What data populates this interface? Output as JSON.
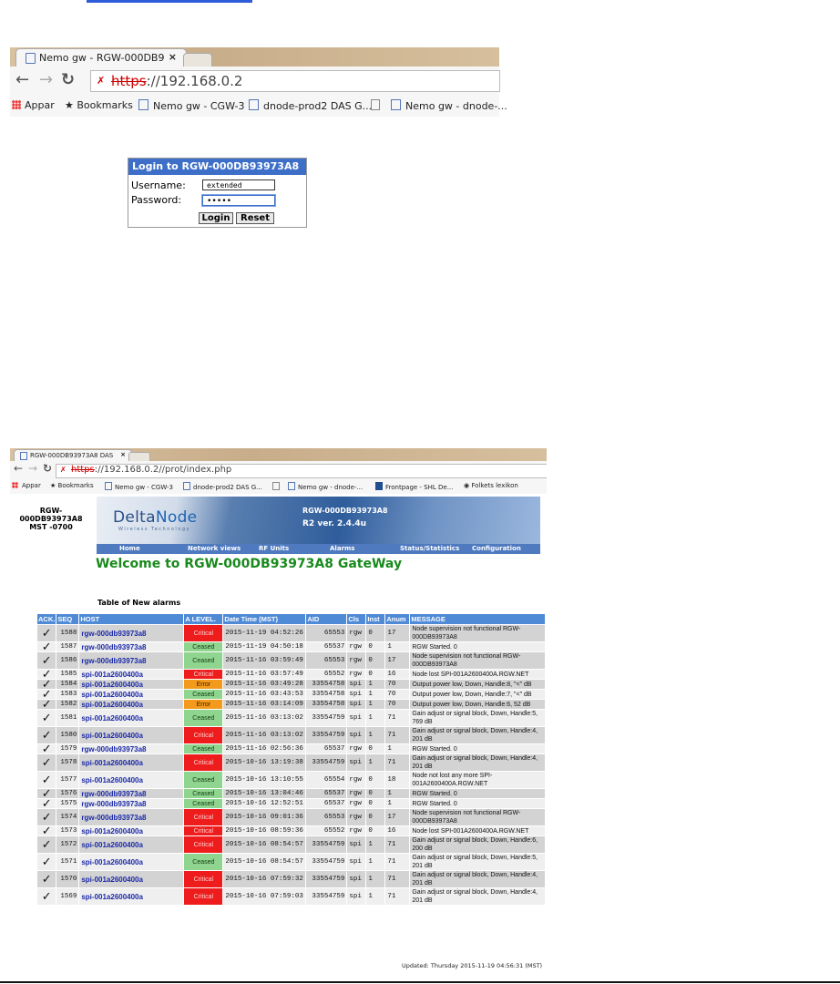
{
  "top_browser": {
    "tab_title": "Nemo gw - RGW-000DB9",
    "tab_close": "×",
    "url_scheme": "https",
    "url_rest": "://192.168.0.2",
    "bookmarks": [
      "Appar",
      "Bookmarks",
      "Nemo gw - CGW-3",
      "dnode-prod2 DAS G...",
      "",
      "Nemo gw - dnode-..."
    ]
  },
  "login": {
    "title": "Login to RGW-000DB93973A8",
    "username_label": "Username:",
    "username_value": "extended",
    "password_label": "Password:",
    "password_value": "•••••",
    "login_button": "Login",
    "reset_button": "Reset"
  },
  "bottom_browser": {
    "tab_title": "RGW-000DB93973A8 DAS",
    "tab_close": "×",
    "url_scheme": "https",
    "url_rest": "://192.168.0.2//prot/index.php",
    "bookmarks": [
      "Appar",
      "Bookmarks",
      "Nemo gw - CGW-3",
      "dnode-prod2 DAS G...",
      "",
      "Nemo gw - dnode-...",
      "Frontpage - SHL De...",
      "Folkets lexikon"
    ]
  },
  "page": {
    "side_title": "RGW-000DB93973A8",
    "side_tz": "MST -0700",
    "logo_delta": "Delta",
    "logo_node": "Node",
    "logo_tagline": "Wireless Technology",
    "banner_line1": "RGW-000DB93973A8",
    "banner_line2": "R2 ver. 2.4.4u",
    "menu": [
      "Home",
      "Network views",
      "RF Units",
      "Alarms",
      "Status/Statistics",
      "Configuration"
    ],
    "welcome": "Welcome to RGW-000DB93973A8 GateWay",
    "table_caption": "Table of New alarms",
    "columns": [
      "ACK.",
      "SEQ",
      "HOST",
      "A LEVEL.",
      "Date Time (MST)",
      "AID",
      "Cls",
      "Inst",
      "Anum",
      "MESSAGE"
    ],
    "updated": "Updated: Thursday 2015-11-19 04:56:31 (MST)"
  },
  "alarms": [
    {
      "seq": "1588",
      "host": "rgw-000db93973a8",
      "level": "Critical",
      "dt": "2015-11-19 04:52:26",
      "aid": "65553",
      "cls": "rgw",
      "inst": "0",
      "anum": "17",
      "msg": "Node supervision not functional RGW-000DB93973A8"
    },
    {
      "seq": "1587",
      "host": "rgw-000db93973a8",
      "level": "Ceased",
      "dt": "2015-11-19 04:50:18",
      "aid": "65537",
      "cls": "rgw",
      "inst": "0",
      "anum": "1",
      "msg": "RGW Started. 0"
    },
    {
      "seq": "1586",
      "host": "rgw-000db93973a8",
      "level": "Ceased",
      "dt": "2015-11-16 03:59:49",
      "aid": "65553",
      "cls": "rgw",
      "inst": "0",
      "anum": "17",
      "msg": "Node supervision not functional RGW-000DB93973A8"
    },
    {
      "seq": "1585",
      "host": "spi-001a2600400a",
      "level": "Critical",
      "dt": "2015-11-16 03:57:49",
      "aid": "65552",
      "cls": "rgw",
      "inst": "0",
      "anum": "16",
      "msg": "Node lost SPI-001A2600400A.RGW.NET"
    },
    {
      "seq": "1584",
      "host": "spi-001a2600400a",
      "level": "Error",
      "dt": "2015-11-16 03:49:28",
      "aid": "33554758",
      "cls": "spi",
      "inst": "1",
      "anum": "70",
      "msg": "Output power low, Down, Handle:8, \"<\" dB"
    },
    {
      "seq": "1583",
      "host": "spi-001a2600400a",
      "level": "Ceased",
      "dt": "2015-11-16 03:43:53",
      "aid": "33554758",
      "cls": "spi",
      "inst": "1",
      "anum": "70",
      "msg": "Output power low, Down, Handle:7, \"<\" dB"
    },
    {
      "seq": "1582",
      "host": "spi-001a2600400a",
      "level": "Error",
      "dt": "2015-11-16 03:14:09",
      "aid": "33554758",
      "cls": "spi",
      "inst": "1",
      "anum": "70",
      "msg": "Output power low, Down, Handle:6, 52 dB"
    },
    {
      "seq": "1581",
      "host": "spi-001a2600400a",
      "level": "Ceased",
      "dt": "2015-11-16 03:13:02",
      "aid": "33554759",
      "cls": "spi",
      "inst": "1",
      "anum": "71",
      "msg": "Gain adjust or signal block, Down, Handle:5, 769 dB"
    },
    {
      "seq": "1580",
      "host": "spi-001a2600400a",
      "level": "Critical",
      "dt": "2015-11-16 03:13:02",
      "aid": "33554759",
      "cls": "spi",
      "inst": "1",
      "anum": "71",
      "msg": "Gain adjust or signal block, Down, Handle:4, 201 dB"
    },
    {
      "seq": "1579",
      "host": "rgw-000db93973a8",
      "level": "Ceased",
      "dt": "2015-11-16 02:56:36",
      "aid": "65537",
      "cls": "rgw",
      "inst": "0",
      "anum": "1",
      "msg": "RGW Started. 0"
    },
    {
      "seq": "1578",
      "host": "spi-001a2600400a",
      "level": "Critical",
      "dt": "2015-10-16 13:19:38",
      "aid": "33554759",
      "cls": "spi",
      "inst": "1",
      "anum": "71",
      "msg": "Gain adjust or signal block, Down, Handle:4, 201 dB"
    },
    {
      "seq": "1577",
      "host": "spi-001a2600400a",
      "level": "Ceased",
      "dt": "2015-10-16 13:10:55",
      "aid": "65554",
      "cls": "rgw",
      "inst": "0",
      "anum": "18",
      "msg": "Node not lost any more SPI-001A2600400A.RGW.NET"
    },
    {
      "seq": "1576",
      "host": "rgw-000db93973a8",
      "level": "Ceased",
      "dt": "2015-10-16 13:04:46",
      "aid": "65537",
      "cls": "rgw",
      "inst": "0",
      "anum": "1",
      "msg": "RGW Started. 0"
    },
    {
      "seq": "1575",
      "host": "rgw-000db93973a8",
      "level": "Ceased",
      "dt": "2015-10-16 12:52:51",
      "aid": "65537",
      "cls": "rgw",
      "inst": "0",
      "anum": "1",
      "msg": "RGW Started. 0"
    },
    {
      "seq": "1574",
      "host": "rgw-000db93973a8",
      "level": "Critical",
      "dt": "2015-10-16 09:01:36",
      "aid": "65553",
      "cls": "rgw",
      "inst": "0",
      "anum": "17",
      "msg": "Node supervision not functional RGW-000DB93973A8"
    },
    {
      "seq": "1573",
      "host": "spi-001a2600400a",
      "level": "Critical",
      "dt": "2015-10-16 08:59:36",
      "aid": "65552",
      "cls": "rgw",
      "inst": "0",
      "anum": "16",
      "msg": "Node lost SPI-001A2600400A.RGW.NET"
    },
    {
      "seq": "1572",
      "host": "spi-001a2600400a",
      "level": "Critical",
      "dt": "2015-10-16 08:54:57",
      "aid": "33554759",
      "cls": "spi",
      "inst": "1",
      "anum": "71",
      "msg": "Gain adjust or signal block, Down, Handle:6, 200 dB"
    },
    {
      "seq": "1571",
      "host": "spi-001a2600400a",
      "level": "Ceased",
      "dt": "2015-10-16 08:54:57",
      "aid": "33554759",
      "cls": "spi",
      "inst": "1",
      "anum": "71",
      "msg": "Gain adjust or signal block, Down, Handle:5, 201 dB"
    },
    {
      "seq": "1570",
      "host": "spi-001a2600400a",
      "level": "Critical",
      "dt": "2015-10-16 07:59:32",
      "aid": "33554759",
      "cls": "spi",
      "inst": "1",
      "anum": "71",
      "msg": "Gain adjust or signal block, Down, Handle:4, 201 dB"
    },
    {
      "seq": "1569",
      "host": "spi-001a2600400a",
      "level": "Critical",
      "dt": "2015-10-16 07:59:03",
      "aid": "33554759",
      "cls": "spi",
      "inst": "1",
      "anum": "71",
      "msg": "Gain adjust or signal block, Down, Handle:4, 201 dB"
    }
  ],
  "colors": {
    "critical": "#ee1c1c",
    "ceased": "#8fd48f",
    "error": "#f39a1c",
    "header": "#4f8ad6",
    "welcome": "#188a1c",
    "host_link": "#1c2aa8"
  }
}
